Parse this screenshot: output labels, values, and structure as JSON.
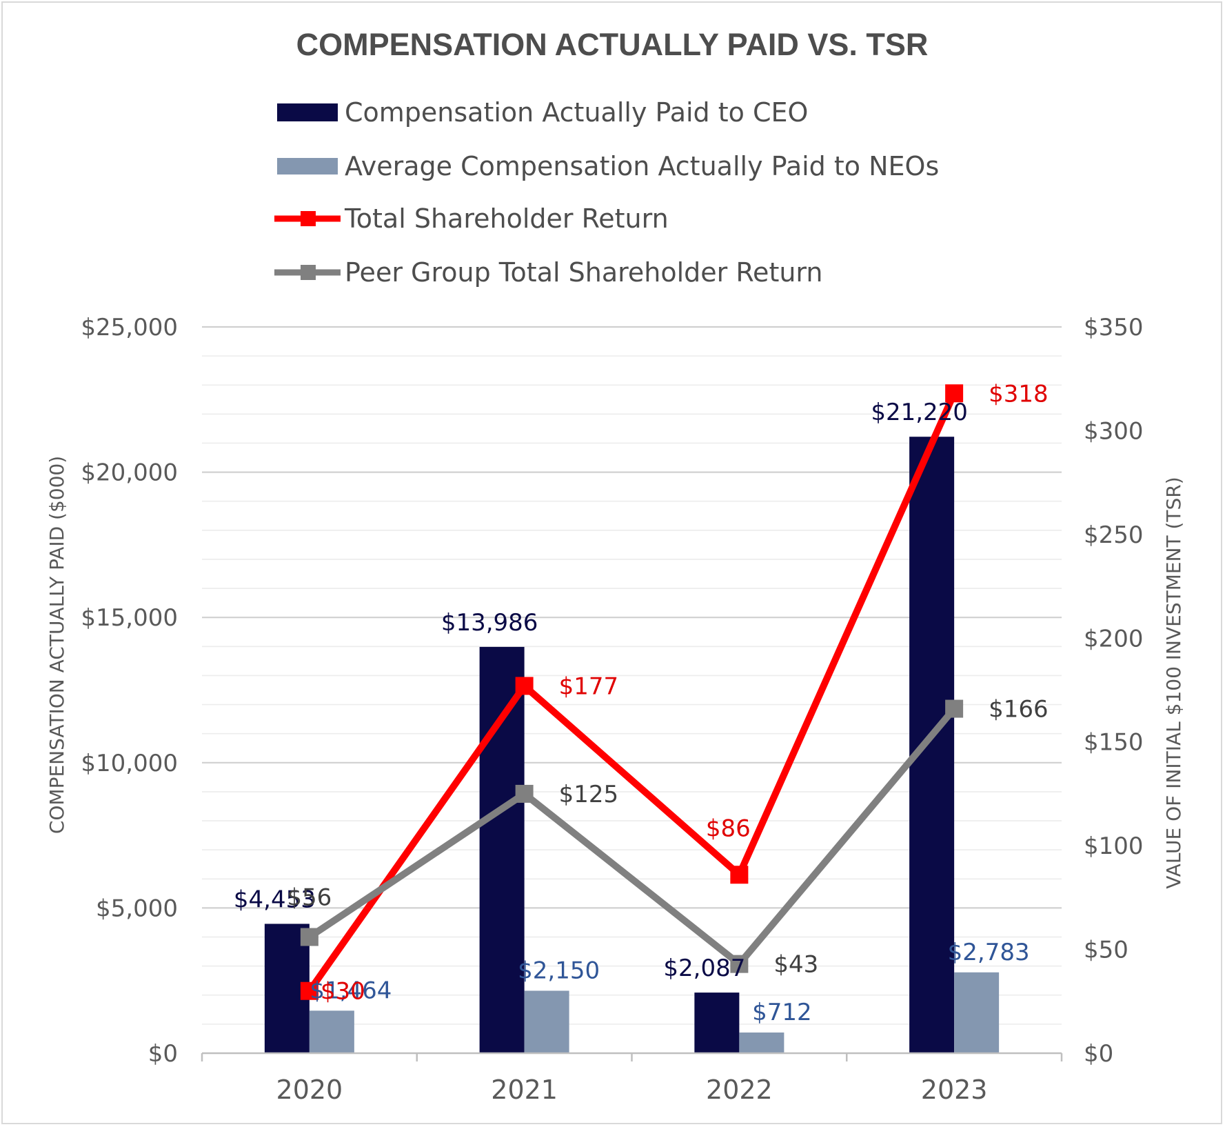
{
  "chart_data": {
    "type": "bar",
    "title": "COMPENSATION ACTUALLY PAID VS. TSR",
    "categories": [
      "2020",
      "2021",
      "2022",
      "2023"
    ],
    "y_left": {
      "label": "COMPENSATION ACTUALLY PAID ($000)",
      "range": [
        0,
        25000
      ],
      "ticks": [
        "$0",
        "$5,000",
        "$10,000",
        "$15,000",
        "$20,000",
        "$25,000"
      ]
    },
    "y_right": {
      "label": "VALUE OF INITIAL $100 INVESTMENT (TSR)",
      "range": [
        0,
        350
      ],
      "ticks": [
        "$0",
        "$50",
        "$100",
        "$150",
        "$200",
        "$250",
        "$300",
        "$350"
      ]
    },
    "grid": true,
    "legend_position": "top",
    "series": [
      {
        "name": "Compensation Actually Paid to CEO",
        "kind": "bar",
        "axis": "left",
        "color": "#0a0a46",
        "values": [
          4453,
          13986,
          2087,
          21220
        ],
        "labels": [
          "$4,453",
          "$13,986",
          "$2,087",
          "$21,220"
        ],
        "label_color": "#0a0a46"
      },
      {
        "name": "Average Compensation Actually Paid to NEOs",
        "kind": "bar",
        "axis": "left",
        "color": "#8497b0",
        "values": [
          1464,
          2150,
          712,
          2783
        ],
        "labels": [
          "$1,464",
          "$2,150",
          "$712",
          "$2,783"
        ],
        "label_color": "#2f5597"
      },
      {
        "name": "Total Shareholder Return",
        "kind": "line",
        "axis": "right",
        "color": "#ff0000",
        "values": [
          30,
          177,
          86,
          318
        ],
        "labels": [
          "$30",
          "$177",
          "$86",
          "$318"
        ],
        "label_color": "#e00000"
      },
      {
        "name": "Peer Group Total Shareholder Return",
        "kind": "line",
        "axis": "right",
        "color": "#808080",
        "values": [
          56,
          125,
          43,
          166
        ],
        "labels": [
          "$56",
          "$125",
          "$43",
          "$166"
        ],
        "label_color": "#404040"
      }
    ]
  }
}
